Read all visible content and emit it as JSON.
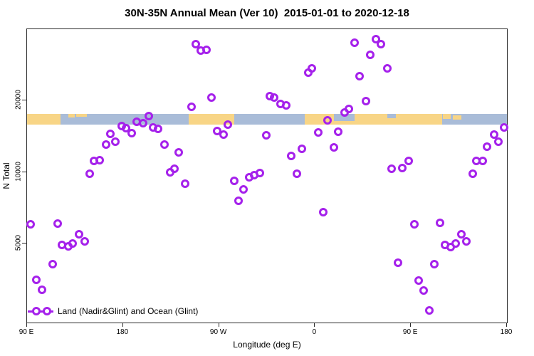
{
  "title": "30N-35N Annual Mean (Ver 10)  2015-01-01 to 2020-12-18",
  "legend": {
    "label": "Land (Nadir&Glint) and Ocean (Glint)"
  },
  "colors": {
    "point": "#A521EB",
    "land": "#F8D586",
    "ocean": "#A9BCD8",
    "axis": "#2b2b2b"
  },
  "chart_data": {
    "type": "scatter",
    "title": "30N-35N Annual Mean (Ver 10)  2015-01-01 to 2020-12-18",
    "xlabel": "Longitude (deg E)",
    "ylabel": "N Total",
    "x_axis": {
      "range_deg": [
        90,
        540
      ],
      "ticks": [
        {
          "deg": 90,
          "label": "90 E"
        },
        {
          "deg": 180,
          "label": "180"
        },
        {
          "deg": 270,
          "label": "90 W"
        },
        {
          "deg": 360,
          "label": "0"
        },
        {
          "deg": 450,
          "label": "90 E"
        },
        {
          "deg": 540,
          "label": "180"
        }
      ]
    },
    "y_axis": {
      "scale": "log",
      "range": [
        2400,
        40000
      ],
      "ticks": [
        {
          "value": 5000,
          "label": "5000"
        },
        {
          "value": 10000,
          "label": "10000"
        },
        {
          "value": 20000,
          "label": "20000"
        }
      ]
    },
    "map_strip": {
      "value_band": [
        15800,
        17500
      ],
      "segments": [
        {
          "from": 90,
          "to": 121.5,
          "type": "land"
        },
        {
          "from": 121.5,
          "to": 241.5,
          "type": "ocean"
        },
        {
          "from": 241.5,
          "to": 284,
          "type": "land"
        },
        {
          "from": 284,
          "to": 350.5,
          "type": "ocean"
        },
        {
          "from": 350.5,
          "to": 479.5,
          "type": "land"
        },
        {
          "from": 479.5,
          "to": 540,
          "type": "ocean"
        }
      ],
      "overlays": [
        {
          "from": 378,
          "to": 397,
          "type": "ocean",
          "topPct": 0,
          "heightPct": 65
        },
        {
          "from": 129,
          "to": 135,
          "type": "land",
          "topPct": 0,
          "heightPct": 30
        },
        {
          "from": 136,
          "to": 146,
          "type": "land",
          "topPct": 0,
          "heightPct": 25
        },
        {
          "from": 428,
          "to": 436,
          "type": "ocean",
          "topPct": 0,
          "heightPct": 35
        },
        {
          "from": 480,
          "to": 487,
          "type": "land",
          "topPct": 0,
          "heightPct": 45
        },
        {
          "from": 489,
          "to": 497,
          "type": "land",
          "topPct": 10,
          "heightPct": 40
        }
      ]
    },
    "points": [
      [
        248,
        34500
      ],
      [
        253,
        32400
      ],
      [
        258,
        32600
      ],
      [
        354,
        26200
      ],
      [
        357,
        27300
      ],
      [
        263,
        20600
      ],
      [
        244,
        18800
      ],
      [
        318,
        20900
      ],
      [
        322,
        20600
      ],
      [
        328,
        19300
      ],
      [
        333,
        19100
      ],
      [
        397,
        35000
      ],
      [
        417,
        36200
      ],
      [
        422,
        34500
      ],
      [
        412,
        31100
      ],
      [
        428,
        27300
      ],
      [
        402,
        25300
      ],
      [
        408,
        19900
      ],
      [
        392,
        18400
      ],
      [
        388,
        17800
      ],
      [
        204,
        17200
      ],
      [
        193,
        16300
      ],
      [
        199,
        16000
      ],
      [
        208,
        15400
      ],
      [
        213,
        15200
      ],
      [
        179,
        15600
      ],
      [
        183,
        15300
      ],
      [
        188,
        14600
      ],
      [
        168,
        14500
      ],
      [
        173,
        13400
      ],
      [
        164,
        13000
      ],
      [
        219,
        13000
      ],
      [
        232,
        12100
      ],
      [
        153,
        11100
      ],
      [
        158,
        11200
      ],
      [
        149,
        9800
      ],
      [
        224,
        10000
      ],
      [
        228,
        10300
      ],
      [
        238,
        8900
      ],
      [
        278,
        15800
      ],
      [
        268,
        14900
      ],
      [
        274,
        14400
      ],
      [
        314,
        14300
      ],
      [
        363,
        14700
      ],
      [
        372,
        16500
      ],
      [
        382,
        14800
      ],
      [
        378,
        12700
      ],
      [
        348,
        12500
      ],
      [
        338,
        11700
      ],
      [
        343,
        9800
      ],
      [
        308,
        9900
      ],
      [
        298,
        9500
      ],
      [
        303,
        9700
      ],
      [
        284,
        9200
      ],
      [
        293,
        8450
      ],
      [
        288,
        7560
      ],
      [
        537,
        15400
      ],
      [
        528,
        14400
      ],
      [
        532,
        13400
      ],
      [
        521,
        12800
      ],
      [
        511,
        11100
      ],
      [
        517,
        11100
      ],
      [
        508,
        9800
      ],
      [
        448,
        11100
      ],
      [
        442,
        10400
      ],
      [
        432,
        10300
      ],
      [
        93,
        6020
      ],
      [
        119,
        6060
      ],
      [
        139,
        5470
      ],
      [
        123,
        4930
      ],
      [
        129,
        4860
      ],
      [
        133,
        5000
      ],
      [
        144,
        5100
      ],
      [
        114,
        4090
      ],
      [
        99,
        3520
      ],
      [
        104,
        3190
      ],
      [
        368,
        6770
      ],
      [
        453,
        6020
      ],
      [
        477,
        6100
      ],
      [
        497,
        5470
      ],
      [
        502,
        5100
      ],
      [
        482,
        4930
      ],
      [
        487,
        4830
      ],
      [
        492,
        5000
      ],
      [
        438,
        4150
      ],
      [
        472,
        4100
      ],
      [
        457,
        3490
      ],
      [
        462,
        3170
      ],
      [
        467,
        2610
      ]
    ]
  }
}
